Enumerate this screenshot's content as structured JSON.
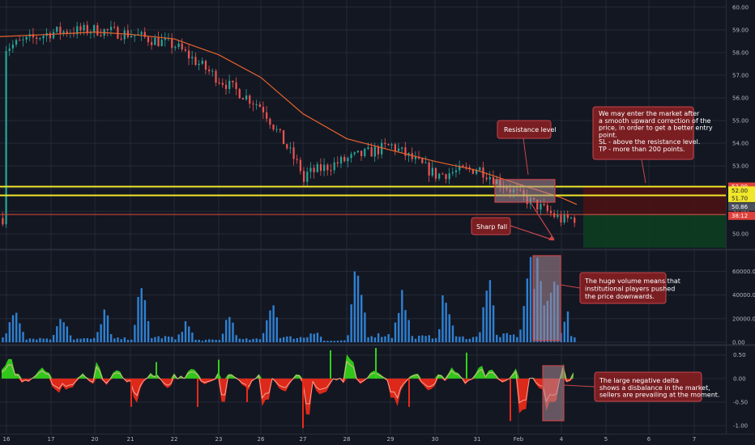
{
  "colors": {
    "background": "#131722",
    "grid": "#252a36",
    "up": "#26a69a",
    "down": "#ef5350",
    "ma": "#e8622c",
    "support": "#f0e62a",
    "resistance_line": "#e04b3a",
    "volume": "#2f80d1",
    "delta_up": "#33d11a",
    "delta_down": "#e82a1a",
    "delta_line": "#f5b2a4",
    "note_fill": "#7a1e22",
    "note_border": "#c8454a",
    "box_fill": "#a98b96",
    "risk_zone": "#4a1214",
    "reward_zone": "#0d3b22"
  },
  "price_axis": {
    "ticks": [
      "60.00",
      "59.00",
      "58.00",
      "57.00",
      "56.00",
      "55.00",
      "54.00",
      "53.00",
      "52.00",
      "51.00",
      "50.00"
    ],
    "tags": [
      {
        "text": "52.09",
        "color": "#e0403a",
        "text_color": "#ffffff",
        "value": 52.09
      },
      {
        "text": "52.00",
        "color": "#f0e62a",
        "text_color": "#131722",
        "value": 51.92
      },
      {
        "text": "51.70",
        "color": "#f0e62a",
        "text_color": "#131722",
        "value": 51.58
      },
      {
        "text": "50.86",
        "color": "#4a4f5c",
        "text_color": "#ffffff",
        "value": 51.2
      },
      {
        "text": "38:12",
        "color": "#e0403a",
        "text_color": "#ffffff",
        "value": 50.8
      }
    ]
  },
  "volume_axis": {
    "ticks": [
      "60000.00",
      "40000.00",
      "20000.00",
      "0.00"
    ]
  },
  "delta_axis": {
    "ticks": [
      "0.50",
      "0.00",
      "-0.50",
      "-1.00"
    ]
  },
  "time_axis": {
    "ticks": [
      "16",
      "17",
      "20",
      "21",
      "22",
      "23",
      "26",
      "27",
      "28",
      "29",
      "30",
      "31",
      "Feb",
      "4",
      "5",
      "6",
      "7"
    ]
  },
  "annotations": {
    "resistance": "Resistance level",
    "sharp_fall": "Sharp fall",
    "entry_lines": [
      "We may enter the market after",
      "a smooth upward correction of the",
      "price, in order to get a better entry",
      "point.",
      "SL - above the resistance level.",
      "TP - more than 200 points."
    ],
    "volume_lines": [
      "The huge volume means that",
      "institutional players pushed",
      "the price downwards."
    ],
    "delta_lines": [
      "The large negative delta",
      "shows a disbalance in the market,",
      "sellers are prevailing at the moment."
    ]
  },
  "chart_data": [
    {
      "type": "candlestick",
      "title": "",
      "ylim": [
        49.4,
        60.1
      ],
      "x": [
        "16",
        "17",
        "20",
        "21",
        "22",
        "23",
        "26",
        "27",
        "28",
        "29",
        "30",
        "31",
        "Feb",
        "4"
      ],
      "close": [
        58.2,
        58.9,
        59.0,
        58.8,
        58.3,
        56.8,
        55.6,
        52.6,
        53.3,
        53.9,
        52.6,
        52.9,
        51.7,
        50.6
      ],
      "moving_average": [
        58.7,
        58.8,
        58.9,
        58.8,
        58.6,
        57.9,
        56.9,
        55.3,
        54.2,
        53.7,
        53.2,
        52.8,
        52.2,
        51.6
      ],
      "levels": {
        "resistance_upper": 52.09,
        "resistance_lower": 51.7,
        "stop_reference": 50.86
      },
      "resistance_zone": [
        51.4,
        52.4
      ],
      "risk_zone": [
        50.86,
        52.09
      ],
      "reward_zone": [
        49.0,
        50.86
      ]
    },
    {
      "type": "bar",
      "title": "",
      "ylim": [
        0,
        76000
      ],
      "x": [
        "16",
        "17",
        "20",
        "21",
        "22",
        "23",
        "26",
        "27",
        "28",
        "29",
        "30",
        "31",
        "Feb",
        "4"
      ],
      "values": [
        32000,
        28000,
        30000,
        42000,
        18000,
        24000,
        40000,
        12000,
        60000,
        44000,
        40000,
        56000,
        76000,
        42000
      ]
    },
    {
      "type": "bar",
      "title": "",
      "ylim": [
        -1.1,
        0.65
      ],
      "x": [
        "16",
        "17",
        "20",
        "21",
        "22",
        "23",
        "26",
        "27",
        "28",
        "29",
        "30",
        "31",
        "Feb",
        "4"
      ],
      "values": [
        0.3,
        -0.35,
        0.25,
        -0.4,
        0.2,
        -0.5,
        -0.6,
        -1.0,
        0.4,
        -0.45,
        0.3,
        0.35,
        -0.8,
        0.2
      ]
    }
  ]
}
